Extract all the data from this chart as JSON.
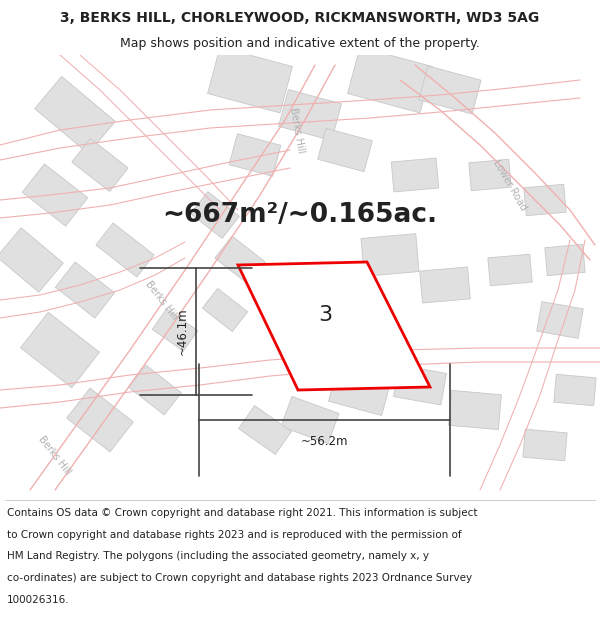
{
  "title_line1": "3, BERKS HILL, CHORLEYWOOD, RICKMANSWORTH, WD3 5AG",
  "title_line2": "Map shows position and indicative extent of the property.",
  "area_text": "~667m²/~0.165ac.",
  "property_label": "3",
  "dim_vertical": "~46.1m",
  "dim_horizontal": "~56.2m",
  "road_label_berks_mid": "Berks Hill",
  "road_label_lower": "Lower Road",
  "road_label_berks_bot": "Berks Hill",
  "footer_lines": [
    "Contains OS data © Crown copyright and database right 2021. This information is subject",
    "to Crown copyright and database rights 2023 and is reproduced with the permission of",
    "HM Land Registry. The polygons (including the associated geometry, namely x, y",
    "co-ordinates) are subject to Crown copyright and database rights 2023 Ordnance Survey",
    "100026316."
  ],
  "map_bg": "#f2f2f2",
  "title_bg": "#ffffff",
  "footer_bg": "#ffffff",
  "building_fc": "#e0e0e0",
  "building_ec": "#c8c8c8",
  "road_color": "#f0b0b0",
  "red_color": "#ee0000",
  "dim_color": "#444444",
  "text_color": "#222222",
  "road_label_color": "#b0b0b0",
  "title_fontsize": 10,
  "subtitle_fontsize": 9,
  "area_fontsize": 19,
  "label_fontsize": 16,
  "footer_fontsize": 7.5,
  "dim_fontsize": 8.5,
  "road_label_fontsize": 7
}
